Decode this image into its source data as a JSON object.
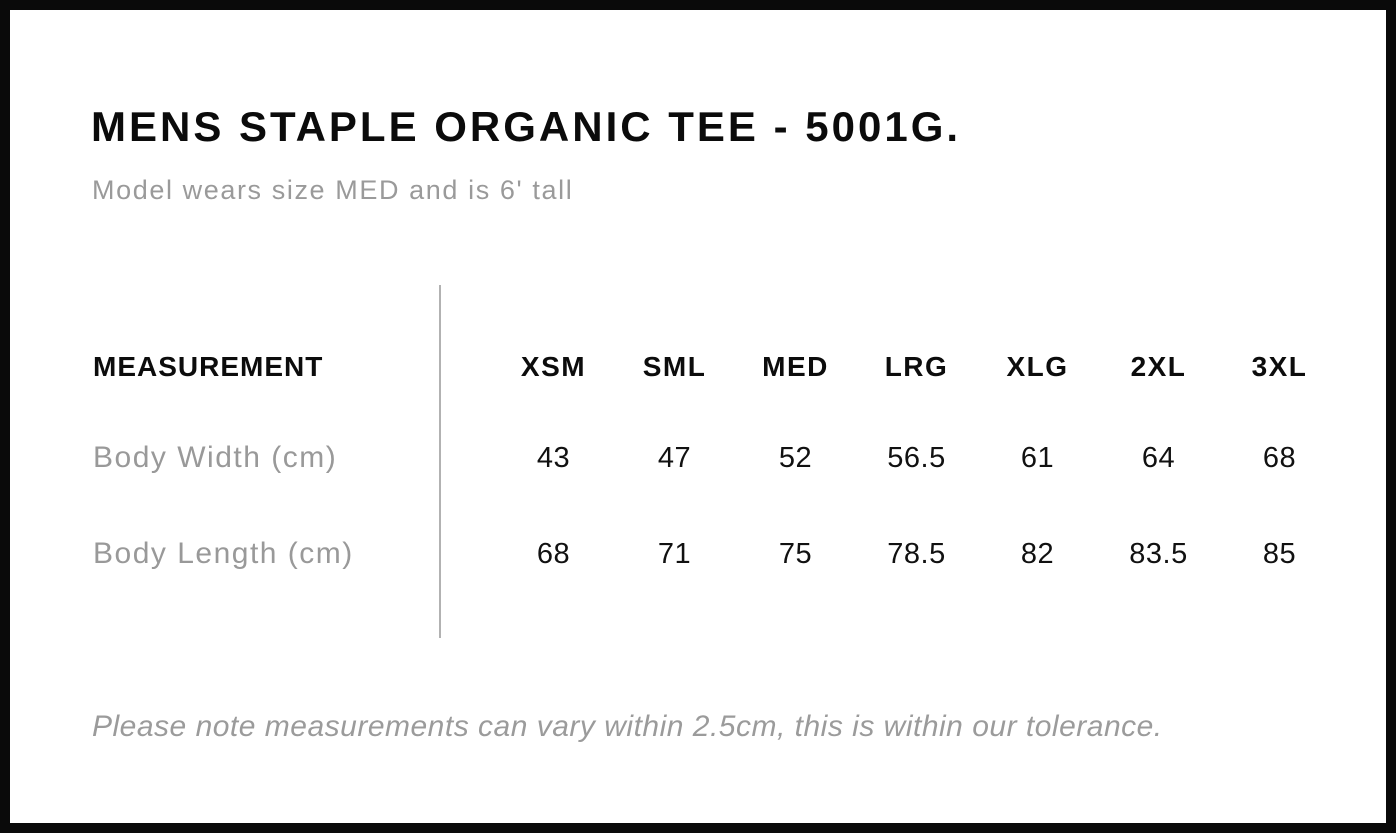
{
  "page": {
    "title": "MENS STAPLE ORGANIC TEE - 5001G.",
    "subtitle": "Model wears size MED and is 6' tall",
    "note": "Please note measurements can vary within 2.5cm, this is within our tolerance."
  },
  "size_chart": {
    "measurement_header": "MEASUREMENT",
    "sizes": [
      "XSM",
      "SML",
      "MED",
      "LRG",
      "XLG",
      "2XL",
      "3XL"
    ],
    "rows": [
      {
        "label": "Body Width (cm)",
        "values": [
          "43",
          "47",
          "52",
          "56.5",
          "61",
          "64",
          "68"
        ]
      },
      {
        "label": "Body Length (cm)",
        "values": [
          "68",
          "71",
          "75",
          "78.5",
          "82",
          "83.5",
          "85"
        ]
      }
    ]
  },
  "colors": {
    "text_primary": "#0b0b0b",
    "text_muted": "#9a9a9a",
    "divider_line": "#b2b2b2",
    "page_border": "#0a0a0a",
    "background": "#ffffff"
  }
}
